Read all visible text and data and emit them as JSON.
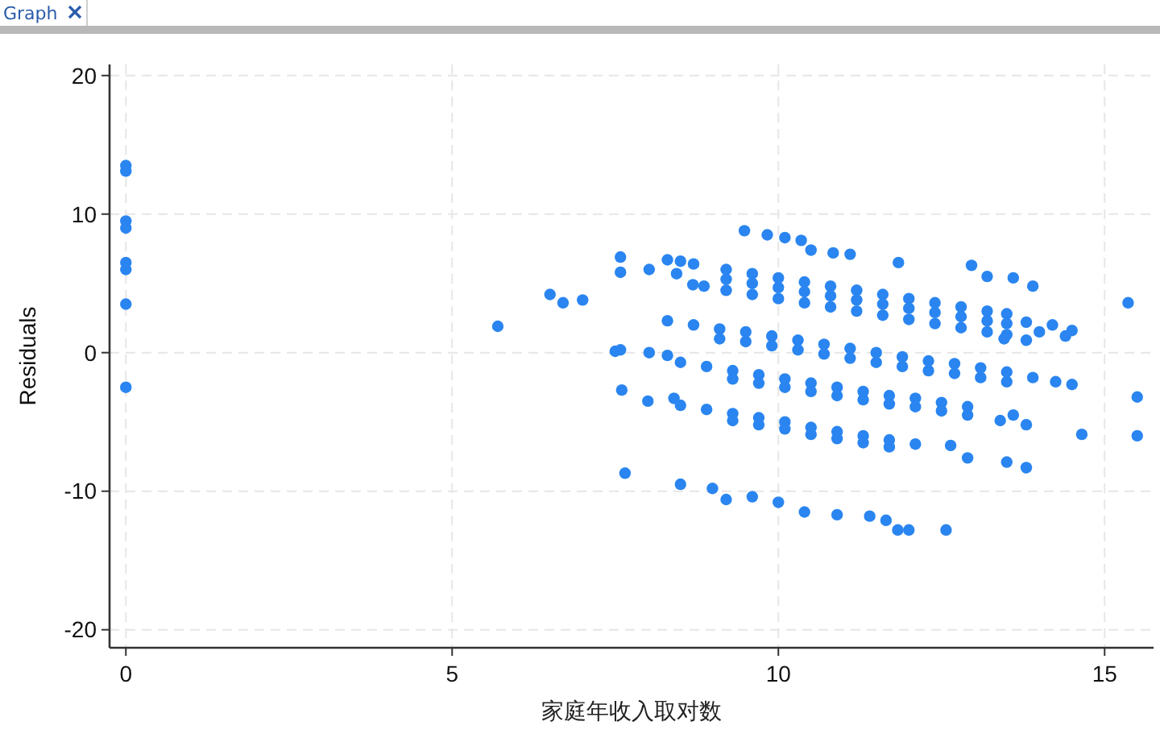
{
  "chart_data": {
    "type": "scatter",
    "xlabel": "家庭年收入取对数",
    "ylabel": "Residuals",
    "annotations": [
      "Graph"
    ],
    "xlim": [
      -0.25,
      15.75
    ],
    "ylim": [
      -21.3,
      20.8
    ],
    "xticks": [
      0,
      5,
      10,
      15
    ],
    "yticks": [
      -20,
      -10,
      0,
      10,
      20
    ],
    "grid": true,
    "marker": "circle",
    "series": [
      {
        "color": "#2a85f0",
        "x": [
          0,
          0,
          0,
          0,
          0,
          0,
          0,
          0,
          5.7,
          6.5,
          6.7,
          7.0,
          9.48,
          9.83,
          10.1,
          10.35,
          10.5,
          10.84,
          11.1,
          11.84,
          12.96,
          13.2,
          13.6,
          13.9,
          7.58,
          7.58,
          8.02,
          8.3,
          8.5,
          8.7,
          8.44,
          8.69,
          8.86,
          9.2,
          9.6,
          10.0,
          10.4,
          10.8,
          11.2,
          11.6,
          12.0,
          12.4,
          12.8,
          13.2,
          13.5,
          9.2,
          9.6,
          10.0,
          10.4,
          10.8,
          11.2,
          11.6,
          12.0,
          12.4,
          12.8,
          13.2,
          13.5,
          9.2,
          9.6,
          10.0,
          10.4,
          10.8,
          11.2,
          11.6,
          12.0,
          12.4,
          12.8,
          13.2,
          13.5,
          13.8,
          14.0,
          14.2,
          14.5,
          14.4,
          15.36,
          13.46,
          13.8,
          8.3,
          8.7,
          9.1,
          9.5,
          9.9,
          10.3,
          10.7,
          11.1,
          11.5,
          11.9,
          12.3,
          12.7,
          13.1,
          13.5,
          9.1,
          9.5,
          9.9,
          10.3,
          10.7,
          11.1,
          11.5,
          11.9,
          12.3,
          12.7,
          13.1,
          13.5,
          7.5,
          7.58,
          8.02,
          8.3,
          13.9,
          14.25,
          14.5,
          15.5,
          8.5,
          8.9,
          9.3,
          9.7,
          10.1,
          10.5,
          10.9,
          11.3,
          11.7,
          12.1,
          12.5,
          12.9,
          9.3,
          9.7,
          10.1,
          10.5,
          10.9,
          11.3,
          11.7,
          12.1,
          12.5,
          12.9,
          13.4,
          13.6,
          13.8,
          7.6,
          8.0,
          8.4,
          8.5,
          8.9,
          9.3,
          9.7,
          10.1,
          10.5,
          10.9,
          11.3,
          11.7,
          12.1,
          9.3,
          9.7,
          10.1,
          10.5,
          10.9,
          11.3,
          11.7,
          12.64,
          12.9,
          13.5,
          13.8,
          14.65,
          15.5,
          7.65,
          8.5,
          8.99,
          9.2,
          9.6,
          10.0,
          10.4,
          10.9,
          11.4,
          11.65,
          11.83,
          12.0,
          12.57
        ],
        "values": [
          13.5,
          13.1,
          9.5,
          9.0,
          6.5,
          6.0,
          3.5,
          -2.5,
          1.9,
          4.2,
          3.6,
          3.8,
          8.8,
          8.5,
          8.3,
          8.1,
          7.4,
          7.2,
          7.1,
          6.5,
          6.3,
          5.5,
          5.4,
          4.8,
          6.9,
          5.8,
          6.0,
          6.7,
          6.6,
          6.4,
          5.7,
          4.9,
          4.8,
          6.0,
          5.7,
          5.4,
          5.1,
          4.8,
          4.5,
          4.2,
          3.9,
          3.6,
          3.3,
          3.0,
          2.8,
          5.3,
          5.0,
          4.7,
          4.4,
          4.1,
          3.8,
          3.5,
          3.2,
          2.9,
          2.6,
          2.3,
          2.1,
          4.5,
          4.2,
          3.9,
          3.6,
          3.3,
          3.0,
          2.7,
          2.4,
          2.1,
          1.8,
          1.5,
          1.3,
          2.2,
          1.5,
          2.0,
          1.6,
          1.2,
          3.6,
          1.0,
          0.9,
          2.3,
          2.0,
          1.7,
          1.5,
          1.2,
          0.9,
          0.6,
          0.3,
          0.0,
          -0.3,
          -0.6,
          -0.8,
          -1.1,
          -1.4,
          1.0,
          0.8,
          0.5,
          0.2,
          -0.1,
          -0.4,
          -0.7,
          -1.0,
          -1.3,
          -1.5,
          -1.8,
          -2.1,
          0.1,
          0.2,
          0.0,
          -0.2,
          -1.8,
          -2.1,
          -2.3,
          -3.2,
          -0.7,
          -1.0,
          -1.3,
          -1.6,
          -1.9,
          -2.2,
          -2.5,
          -2.8,
          -3.1,
          -3.3,
          -3.6,
          -3.9,
          -1.9,
          -2.2,
          -2.5,
          -2.8,
          -3.1,
          -3.4,
          -3.7,
          -3.9,
          -4.2,
          -4.5,
          -4.9,
          -4.5,
          -5.2,
          -2.7,
          -3.5,
          -3.3,
          -3.8,
          -4.1,
          -4.4,
          -4.7,
          -5.0,
          -5.4,
          -5.7,
          -6.0,
          -6.3,
          -6.6,
          -4.9,
          -5.2,
          -5.5,
          -5.9,
          -6.2,
          -6.5,
          -6.8,
          -6.7,
          -7.6,
          -7.9,
          -8.3,
          -5.9,
          -6.0,
          -8.7,
          -9.5,
          -9.8,
          -10.6,
          -10.4,
          -10.8,
          -11.5,
          -11.7,
          -11.8,
          -12.1,
          -12.8,
          -12.8,
          -12.8
        ]
      }
    ]
  }
}
